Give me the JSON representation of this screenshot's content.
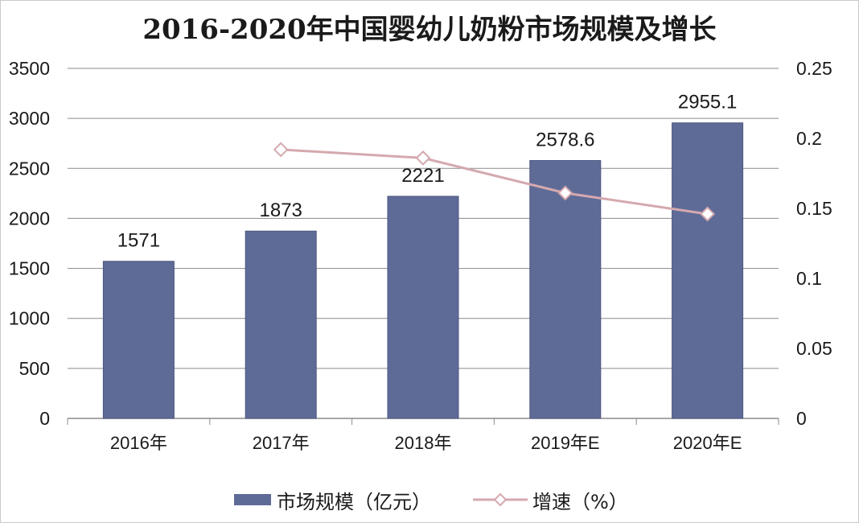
{
  "chart_data": {
    "type": "bar",
    "title": "2016-2020年中国婴幼儿奶粉市场规模及增长",
    "categories": [
      "2016年",
      "2017年",
      "2018年",
      "2019年E",
      "2020年E"
    ],
    "series": [
      {
        "name": "市场规模（亿元）",
        "type": "bar",
        "axis": "left",
        "color": "#5f6b97",
        "values": [
          1571,
          1873,
          2221,
          2578.6,
          2955.1
        ],
        "data_labels": [
          "1571",
          "1873",
          "2221",
          "2578.6",
          "2955.1"
        ]
      },
      {
        "name": "增速（%）",
        "type": "line",
        "axis": "right",
        "color": "#d4a9ae",
        "marker": "diamond",
        "values": [
          null,
          0.192,
          0.186,
          0.161,
          0.146
        ]
      }
    ],
    "ylim_left": [
      0,
      3500
    ],
    "yticks_left": [
      "0",
      "500",
      "1000",
      "1500",
      "2000",
      "2500",
      "3000",
      "3500"
    ],
    "ylim_right": [
      0,
      0.25
    ],
    "yticks_right": [
      "0",
      "0.05",
      "0.1",
      "0.15",
      "0.2",
      "0.25"
    ],
    "grid": true,
    "legend_position": "bottom"
  }
}
